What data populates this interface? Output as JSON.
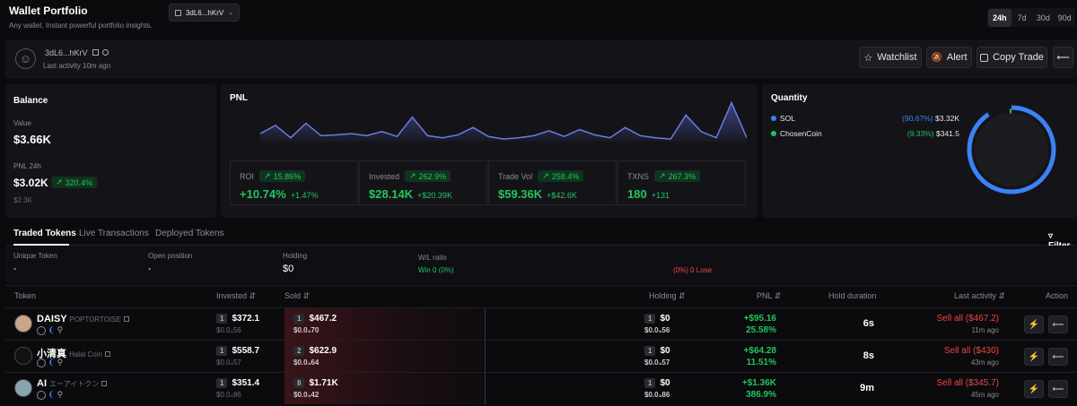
{
  "header": {
    "title": "Wallet Portfolio",
    "subtitle": "Any wallet. Instant powerful portfolio insights.",
    "wallet_select": "3dL6...hKrV",
    "timeframes": [
      "24h",
      "7d",
      "30d",
      "90d"
    ],
    "active_timeframe": "24h"
  },
  "profile": {
    "address": "3dL6...hKrV",
    "last_activity": "Last activity 10m ago",
    "watchlist_label": "Watchlist",
    "alert_label": "Alert",
    "copy_trade_label": "Copy Trade"
  },
  "balance": {
    "title": "Balance",
    "value_label": "Value",
    "value": "$3.66K",
    "pnl_label": "PNL 24h",
    "pnl_value": "$3.02K",
    "pnl_pct": "320.4%",
    "pnl_sub": "$2.3K"
  },
  "pnl": {
    "title": "PNL",
    "chart_points": [
      0.15,
      0.35,
      0.05,
      0.4,
      0.1,
      0.12,
      0.15,
      0.1,
      0.2,
      0.08,
      0.55,
      0.1,
      0.05,
      0.12,
      0.3,
      0.08,
      0.02,
      0.05,
      0.1,
      0.22,
      0.08,
      0.25,
      0.12,
      0.05,
      0.3,
      0.1,
      0.05,
      0.02,
      0.6,
      0.2,
      0.05,
      0.9,
      0.05
    ],
    "stats": [
      {
        "label": "ROI",
        "pct": "15.86%",
        "value": "+10.74%",
        "delta": "+1.47%",
        "white": false
      },
      {
        "label": "Invested",
        "pct": "262.9%",
        "value": "$28.14K",
        "delta": "+$20.39K",
        "white": false
      },
      {
        "label": "Trade Vol",
        "pct": "258.4%",
        "value": "$59.36K",
        "delta": "+$42.6K",
        "white": false
      },
      {
        "label": "TXNS",
        "pct": "267.3%",
        "value": "180",
        "delta": "+131",
        "white": false
      }
    ]
  },
  "quantity": {
    "title": "Quantity",
    "items": [
      {
        "name": "SOL",
        "pct": "(90.67%)",
        "value": "$3.32K",
        "color": "#3b82f6",
        "fraction": 0.9067
      },
      {
        "name": "ChosenCoin",
        "pct": "(9.33%)",
        "value": "$341.5",
        "color": "#22c55e",
        "fraction": 0.0933
      }
    ]
  },
  "tabs": [
    "Traded Tokens",
    "Live Transactions",
    "Deployed Tokens"
  ],
  "filter_label": "Filter",
  "summary": {
    "unique_label": "Unique Token",
    "unique_value": "-",
    "open_label": "Open position",
    "open_value": "-",
    "holding_label": "Holding",
    "holding_value": "$0",
    "wl_label": "W/L ratio",
    "win_text": "Win 0 (0%)",
    "lose_text": "(0%) 0 Lose"
  },
  "table": {
    "headers": {
      "token": "Token",
      "invested": "Invested",
      "sold": "Sold",
      "holding": "Holding",
      "pnl": "PNL",
      "hold_duration": "Hold duration",
      "last_activity": "Last activity",
      "action": "Action"
    },
    "rows": [
      {
        "name": "DAISY",
        "subname": "POPTORTOISE",
        "inv_count": "1",
        "invested": "$372.1",
        "invested_sub": "$0.0₄56",
        "sold_count": "1",
        "sold": "$467.2",
        "sold_sub": "$0.0₄70",
        "hold_count": "1",
        "holding": "$0",
        "holding_sub": "$0.0₄56",
        "pnl": "+$95.16",
        "pnl_pct": "25.58%",
        "duration": "6s",
        "last": "Sell all ($467.2)",
        "ago": "11m ago"
      },
      {
        "name": "小清真",
        "subname": "Halal Coin",
        "inv_count": "1",
        "invested": "$558.7",
        "invested_sub": "$0.0₄57",
        "sold_count": "2",
        "sold": "$622.9",
        "sold_sub": "$0.0₄64",
        "hold_count": "1",
        "holding": "$0",
        "holding_sub": "$0.0₄57",
        "pnl": "+$64.28",
        "pnl_pct": "11.51%",
        "duration": "8s",
        "last": "Sell all ($430)",
        "ago": "43m ago"
      },
      {
        "name": "AI",
        "subname": "エーアイトクン",
        "inv_count": "1",
        "invested": "$351.4",
        "invested_sub": "$0.0₄86",
        "sold_count": "8",
        "sold": "$1.71K",
        "sold_sub": "$0.0₄42",
        "hold_count": "1",
        "holding": "$0",
        "holding_sub": "$0.0₄86",
        "pnl": "+$1.36K",
        "pnl_pct": "386.9%",
        "duration": "9m",
        "last": "Sell all ($345.7)",
        "ago": "45m ago"
      }
    ]
  }
}
